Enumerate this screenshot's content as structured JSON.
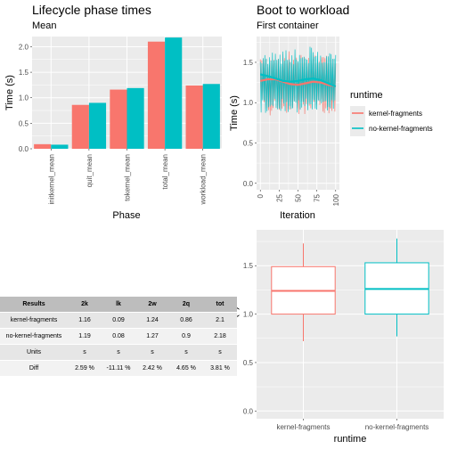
{
  "colors": {
    "kernel": "#F8766D",
    "no_kernel": "#00BFC4",
    "panel": "#EBEBEB",
    "grid": "#FFFFFF"
  },
  "chart_data": [
    {
      "type": "bar",
      "title": "Lifecycle phase times",
      "subtitle": "Mean",
      "xlabel": "Phase",
      "ylabel": "Time (s)",
      "categories": [
        "initkernel_mean",
        "quit_mean",
        "tokernel_mean",
        "total_mean",
        "workload_mean"
      ],
      "series": [
        {
          "name": "kernel-fragments",
          "values": [
            0.09,
            0.86,
            1.16,
            2.1,
            1.24
          ]
        },
        {
          "name": "no-kernel-fragments",
          "values": [
            0.08,
            0.9,
            1.19,
            2.18,
            1.27
          ]
        }
      ],
      "ylim": [
        0,
        2.2
      ],
      "yticks": [
        "0.0",
        "0.5",
        "1.0",
        "1.5",
        "2.0"
      ]
    },
    {
      "type": "line",
      "title": "Boot to workload",
      "subtitle": "First container",
      "xlabel": "Iteration",
      "ylabel": "Time (s)",
      "xlim": [
        0,
        100
      ],
      "ylim": [
        0,
        1.8
      ],
      "xticks": [
        "0",
        "25",
        "50",
        "75",
        "100"
      ],
      "yticks": [
        "0.0",
        "0.5",
        "1.0",
        "1.5"
      ],
      "legend_title": "runtime",
      "series": [
        {
          "name": "kernel-fragments",
          "base": 1.24,
          "amplitude": 0.38,
          "smooth": [
            1.27,
            1.29,
            1.29,
            1.26,
            1.23,
            1.22,
            1.24,
            1.26,
            1.25,
            1.22,
            1.2
          ]
        },
        {
          "name": "no-kernel-fragments",
          "base": 1.27,
          "amplitude": 0.4,
          "smooth": [
            1.35,
            1.33,
            1.3,
            1.27,
            1.26,
            1.27,
            1.29,
            1.3,
            1.28,
            1.24,
            1.2
          ]
        }
      ]
    },
    {
      "type": "box",
      "xlabel": "runtime",
      "ylabel": "Time (s)",
      "categories": [
        "kernel-fragments",
        "no-kernel-fragments"
      ],
      "ylim": [
        0,
        1.8
      ],
      "yticks": [
        "0.0",
        "0.5",
        "1.0",
        "1.5"
      ],
      "boxes": [
        {
          "min": 0.72,
          "q1": 1.0,
          "median": 1.24,
          "q3": 1.49,
          "max": 1.73
        },
        {
          "min": 0.77,
          "q1": 1.0,
          "median": 1.26,
          "q3": 1.53,
          "max": 1.78
        }
      ]
    }
  ],
  "table": {
    "headers": [
      "Results",
      "2k",
      "lk",
      "2w",
      "2q",
      "tot"
    ],
    "rows": [
      [
        "kernel-fragments",
        "1.16",
        "0.09",
        "1.24",
        "0.86",
        "2.1"
      ],
      [
        "no-kernel-fragments",
        "1.19",
        "0.08",
        "1.27",
        "0.9",
        "2.18"
      ],
      [
        "Units",
        "s",
        "s",
        "s",
        "s",
        "s"
      ],
      [
        "Diff",
        "2.59 %",
        "-11.11 %",
        "2.42 %",
        "4.65 %",
        "3.81 %"
      ]
    ]
  }
}
